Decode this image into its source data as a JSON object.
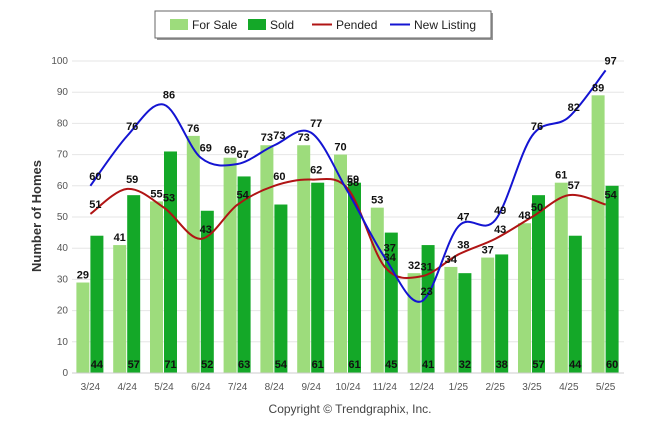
{
  "chart_data": {
    "type": "bar",
    "ylabel": "Number of Homes",
    "ylim": [
      0,
      100
    ],
    "yticks": [
      0,
      10,
      20,
      30,
      40,
      50,
      60,
      70,
      80,
      90,
      100
    ],
    "grid": true,
    "legend_position": "top-center",
    "categories": [
      "3/24",
      "4/24",
      "5/24",
      "6/24",
      "7/24",
      "8/24",
      "9/24",
      "10/24",
      "11/24",
      "12/24",
      "1/25",
      "2/25",
      "3/25",
      "4/25",
      "5/25"
    ],
    "series": [
      {
        "name": "For Sale",
        "kind": "bar",
        "color": "#9ddc7c",
        "values": [
          29,
          41,
          55,
          76,
          69,
          73,
          73,
          70,
          53,
          32,
          34,
          37,
          48,
          61,
          89
        ]
      },
      {
        "name": "Sold",
        "kind": "bar",
        "color": "#14a828",
        "values": [
          44,
          57,
          71,
          52,
          63,
          54,
          61,
          61,
          45,
          41,
          32,
          38,
          57,
          44,
          60
        ]
      },
      {
        "name": "Pended",
        "kind": "line",
        "color": "#b01414",
        "values": [
          51,
          59,
          53,
          43,
          54,
          60,
          62,
          59,
          34,
          31,
          38,
          43,
          50,
          57,
          54
        ]
      },
      {
        "name": "New Listing",
        "kind": "line",
        "color": "#1414d2",
        "values": [
          60,
          76,
          86,
          69,
          67,
          73,
          77,
          58,
          37,
          23,
          47,
          49,
          76,
          82,
          97
        ]
      }
    ]
  },
  "footer": {
    "copyright": "Copyright © Trendgraphix, Inc."
  }
}
